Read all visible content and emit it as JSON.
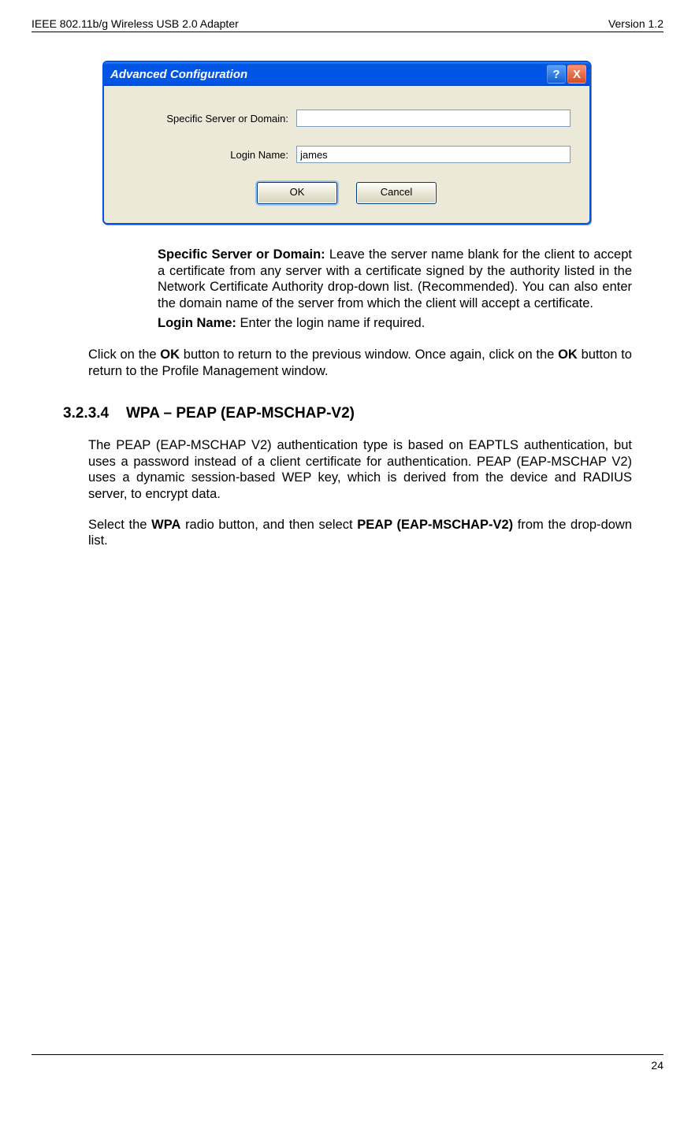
{
  "header": {
    "left": "IEEE 802.11b/g Wireless USB 2.0 Adapter",
    "right": "Version 1.2"
  },
  "dialog": {
    "title": "Advanced Configuration",
    "help_glyph": "?",
    "close_glyph": "X",
    "field1_label": "Specific Server or Domain:",
    "field1_value": "",
    "field2_label": "Login Name:",
    "field2_value": "james",
    "ok_label": "OK",
    "cancel_label": "Cancel"
  },
  "bullets": {
    "b1_label": "Specific Server or Domain:",
    "b1_rest": " Leave the server name blank for the client to accept a certificate from any server with a certificate signed by the authority listed in the Network Certificate Authority drop-down list. (Recommended). You can also enter the domain name of the server from which the client will accept a certificate.",
    "b2_label": "Login Name:",
    "b2_rest": " Enter the login name if required."
  },
  "para1_a": "Click on the ",
  "para1_b": "OK",
  "para1_c": " button to return to the previous window. Once again, click on the ",
  "para1_d": "OK",
  "para1_e": " button to return to the Profile Management window.",
  "section": {
    "num": "3.2.3.4",
    "title": "WPA – PEAP (EAP-MSCHAP-V2)"
  },
  "para2": "The PEAP (EAP-MSCHAP V2) authentication type is based on EAPTLS authentication, but uses a password instead of a client certificate for authentication. PEAP (EAP-MSCHAP V2) uses a dynamic session-based WEP key, which is derived from the device and RADIUS server, to encrypt data.",
  "para3_a": "Select the ",
  "para3_b": "WPA",
  "para3_c": " radio button, and then select ",
  "para3_d": "PEAP (EAP-MSCHAP-V2)",
  "para3_e": " from the drop-down list.",
  "page_number": "24"
}
